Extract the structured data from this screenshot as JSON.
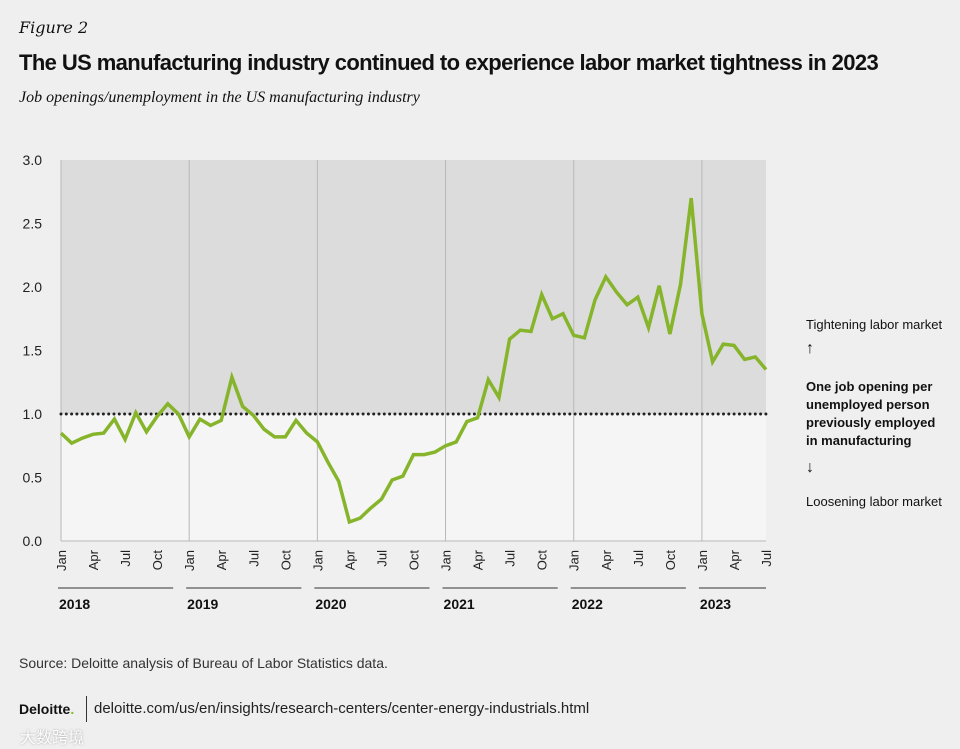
{
  "figure_label": "Figure 2",
  "title": "The US manufacturing industry continued to experience labor market tightness in 2023",
  "subtitle": "Job openings/unemployment in the US manufacturing industry",
  "annotations": {
    "tightening": "Tightening labor market",
    "one_job": [
      "One job opening per",
      "unemployed person",
      "previously employed",
      "in manufacturing"
    ],
    "loosening": "Loosening labor market"
  },
  "source": "Source: Deloitte analysis of Bureau of Labor Statistics data.",
  "logo_text": "Deloitte",
  "url": "deloitte.com/us/en/insights/research-centers/center-energy-industrials.html",
  "watermark": "大数跨境",
  "colors": {
    "line": "#86b42a",
    "upper_shade": "#dcdcdc",
    "lower_shade": "#f5f5f5",
    "background": "#efefef"
  },
  "chart_data": {
    "type": "line",
    "title": "The US manufacturing industry continued to experience labor market tightness in 2023",
    "ylabel": "Job openings/unemployment",
    "ylim": [
      0,
      3.0
    ],
    "yticks": [
      "0.0",
      "0.5",
      "1.0",
      "1.5",
      "2.0",
      "2.5",
      "3.0"
    ],
    "reference_line": 1.0,
    "start": "Jan 2018",
    "years": [
      "2018",
      "2019",
      "2020",
      "2021",
      "2022",
      "2023"
    ],
    "month_ticks": [
      "Jan",
      "Apr",
      "Jul",
      "Oct"
    ],
    "values": [
      0.85,
      0.77,
      0.81,
      0.84,
      0.85,
      0.96,
      0.8,
      1.01,
      0.86,
      0.98,
      1.08,
      1.0,
      0.82,
      0.96,
      0.91,
      0.95,
      1.29,
      1.06,
      0.99,
      0.88,
      0.82,
      0.82,
      0.95,
      0.85,
      0.78,
      0.62,
      0.47,
      0.15,
      0.18,
      0.26,
      0.33,
      0.48,
      0.51,
      0.68,
      0.68,
      0.7,
      0.75,
      0.78,
      0.94,
      0.97,
      1.27,
      1.13,
      1.59,
      1.66,
      1.65,
      1.94,
      1.75,
      1.79,
      1.62,
      1.6,
      1.9,
      2.08,
      1.96,
      1.86,
      1.92,
      1.68,
      2.01,
      1.63,
      2.02,
      2.7,
      1.79,
      1.41,
      1.55,
      1.54,
      1.43,
      1.45,
      1.35
    ]
  }
}
